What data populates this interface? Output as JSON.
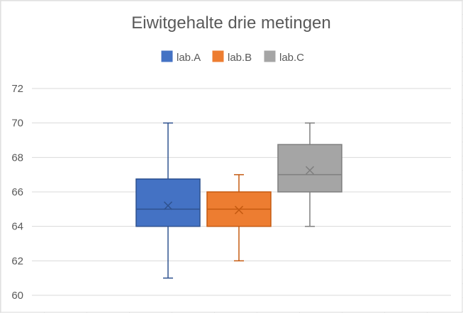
{
  "chart_data": {
    "type": "box",
    "title": "Eiwitgehalte drie metingen",
    "ylim": [
      60,
      72
    ],
    "yticks": [
      60,
      62,
      64,
      66,
      68,
      70,
      72
    ],
    "grid": true,
    "legend_position": "top",
    "series": [
      {
        "name": "lab.A",
        "color": "#4472C4",
        "min": 61,
        "q1": 64,
        "median": 65,
        "mean": 65.2,
        "q3": 66.75,
        "max": 70
      },
      {
        "name": "lab.B",
        "color": "#ED7D31",
        "min": 62,
        "q1": 64,
        "median": 65,
        "mean": 64.95,
        "q3": 66,
        "max": 67
      },
      {
        "name": "lab.C",
        "color": "#A5A5A5",
        "min": 64,
        "q1": 66,
        "median": 67,
        "mean": 67.25,
        "q3": 68.75,
        "max": 70
      }
    ]
  }
}
